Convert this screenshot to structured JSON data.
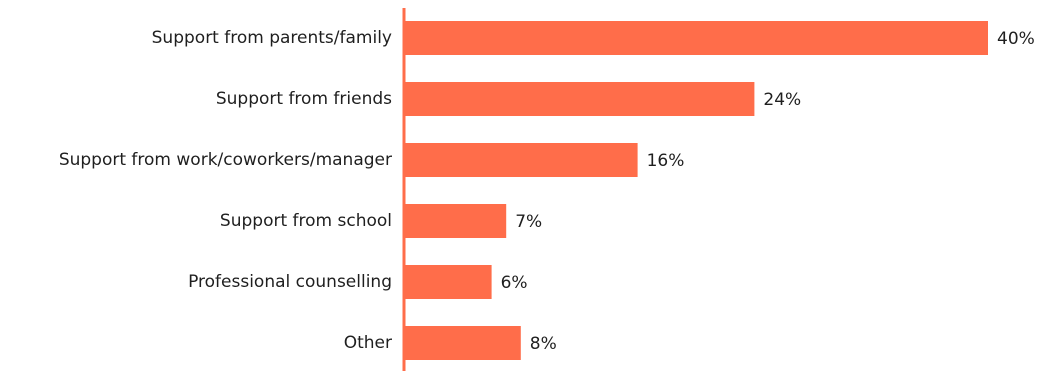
{
  "chart_data": {
    "type": "bar",
    "orientation": "horizontal",
    "categories": [
      "Support from parents/family",
      "Support from friends",
      "Support from work/coworkers/manager",
      "Support from school",
      "Professional counselling",
      "Other"
    ],
    "values": [
      40,
      24,
      16,
      7,
      6,
      8
    ],
    "value_labels": [
      "40%",
      "24%",
      "16%",
      "7%",
      "6%",
      "8%"
    ],
    "unit": "%",
    "xlim": [
      0,
      40
    ],
    "grid": false,
    "legend": "none",
    "title": "",
    "xlabel": "",
    "ylabel": "",
    "colors": {
      "bar": "#FF6D4A",
      "axis": "#FF6D4A",
      "text": "#1f1f1f"
    }
  }
}
